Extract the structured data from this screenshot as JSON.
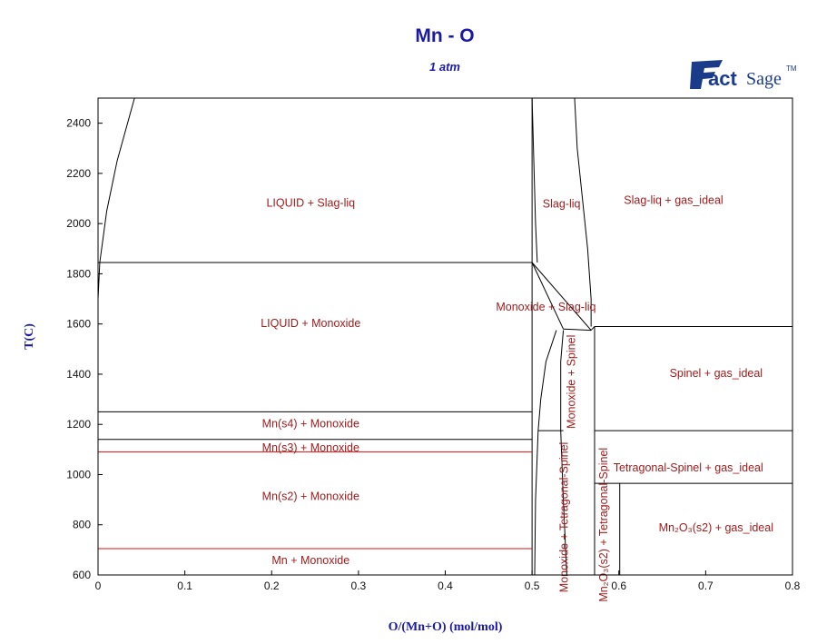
{
  "title": "Mn - O",
  "subtitle": "1 atm",
  "logo_text": "FactSage",
  "logo_tm": "TM",
  "colors": {
    "title": "#1a1aa6",
    "region_label": "#a01c1c",
    "boundary": "#000000",
    "red_line": "#d01010"
  },
  "chart_data": {
    "type": "phase-diagram",
    "xlabel": "O/(Mn+O) (mol/mol)",
    "ylabel": "T(C)",
    "xlim": [
      0,
      0.8
    ],
    "ylim": [
      600,
      2500
    ],
    "x_ticks": [
      "0",
      "0.1",
      "0.2",
      "0.3",
      "0.4",
      "0.5",
      "0.6",
      "0.7",
      "0.8"
    ],
    "y_ticks": [
      "600",
      "800",
      "1000",
      "1200",
      "1400",
      "1600",
      "1800",
      "2000",
      "2200",
      "2400"
    ],
    "grid": false,
    "region_labels": [
      {
        "text": "LIQUID + Slag-liq",
        "x": 0.245,
        "y": 2080,
        "rotate": 0
      },
      {
        "text": "Slag-liq",
        "x": 0.534,
        "y": 2075,
        "rotate": 0
      },
      {
        "text": "Slag-liq + gas_ideal",
        "x": 0.663,
        "y": 2090,
        "rotate": 0
      },
      {
        "text": "LIQUID + Monoxide",
        "x": 0.245,
        "y": 1600,
        "rotate": 0
      },
      {
        "text": "Monoxide + Slag-liq",
        "x": 0.516,
        "y": 1665,
        "rotate": 0
      },
      {
        "text": "Spinel + gas_ideal",
        "x": 0.712,
        "y": 1400,
        "rotate": 0
      },
      {
        "text": "Monoxide + Spinel",
        "x": 0.546,
        "y": 1370,
        "rotate": -90
      },
      {
        "text": "Mn(s4) + Monoxide",
        "x": 0.245,
        "y": 1200,
        "rotate": 0
      },
      {
        "text": "Mn(s3) + Monoxide",
        "x": 0.245,
        "y": 1105,
        "rotate": 0
      },
      {
        "text": "Tetragonal-Spinel + gas_ideal",
        "x": 0.68,
        "y": 1025,
        "rotate": 0
      },
      {
        "text": "Mn(s2) + Monoxide",
        "x": 0.245,
        "y": 910,
        "rotate": 0
      },
      {
        "text": "Monoxide + Tetragonal-Spinel",
        "x": 0.538,
        "y": 830,
        "rotate": -90
      },
      {
        "text": "Mn + Monoxide",
        "x": 0.245,
        "y": 655,
        "rotate": 0
      },
      {
        "text": "Mn₂O₃(s2) + gas_ideal",
        "x": 0.712,
        "y": 785,
        "rotate": 0
      },
      {
        "text": "Mn₂O₃(s2) + Tetragonal-Spinel",
        "x": 0.583,
        "y": 800,
        "rotate": -90
      }
    ],
    "black_lines": [
      [
        [
          0.0,
          1845
        ],
        [
          0.5,
          1845
        ]
      ],
      [
        [
          0.0,
          1250
        ],
        [
          0.5,
          1250
        ]
      ],
      [
        [
          0.0,
          1140
        ],
        [
          0.5,
          1140
        ]
      ],
      [
        [
          0.5,
          600
        ],
        [
          0.5,
          2500
        ]
      ],
      [
        [
          0.5,
          1845
        ],
        [
          0.568,
          1575
        ]
      ],
      [
        [
          0.5,
          1845
        ],
        [
          0.536,
          1580
        ]
      ],
      [
        [
          0.536,
          1580
        ],
        [
          0.568,
          1575
        ]
      ],
      [
        [
          0.568,
          1575
        ],
        [
          0.572,
          1590
        ]
      ],
      [
        [
          0.572,
          600
        ],
        [
          0.572,
          1590
        ]
      ],
      [
        [
          0.572,
          1590
        ],
        [
          0.8,
          1590
        ]
      ],
      [
        [
          0.572,
          1175
        ],
        [
          0.8,
          1175
        ]
      ],
      [
        [
          0.572,
          965
        ],
        [
          0.8,
          965
        ]
      ],
      [
        [
          0.601,
          600
        ],
        [
          0.601,
          965
        ]
      ],
      [
        [
          0.507,
          1175
        ],
        [
          0.536,
          1175
        ]
      ]
    ],
    "red_lines": [
      [
        [
          0.0,
          1090
        ],
        [
          0.5,
          1090
        ]
      ],
      [
        [
          0.0,
          705
        ],
        [
          0.5,
          705
        ]
      ]
    ],
    "curves": [
      {
        "name": "liquidus-left",
        "points": [
          [
            0.0,
            1700
          ],
          [
            0.002,
            1845
          ],
          [
            0.01,
            2050
          ],
          [
            0.022,
            2250
          ],
          [
            0.042,
            2500
          ]
        ]
      },
      {
        "name": "slag-liq-left",
        "points": [
          [
            0.5,
            2500
          ],
          [
            0.502,
            2250
          ],
          [
            0.504,
            2000
          ],
          [
            0.506,
            1845
          ]
        ]
      },
      {
        "name": "slag-liq-right",
        "points": [
          [
            0.549,
            2500
          ],
          [
            0.552,
            2300
          ],
          [
            0.558,
            2100
          ],
          [
            0.564,
            1900
          ],
          [
            0.568,
            1700
          ],
          [
            0.568,
            1590
          ]
        ]
      },
      {
        "name": "monoxide-spinel",
        "points": [
          [
            0.528,
            1575
          ],
          [
            0.516,
            1450
          ],
          [
            0.51,
            1300
          ],
          [
            0.507,
            1175
          ],
          [
            0.504,
            900
          ],
          [
            0.503,
            600
          ]
        ]
      },
      {
        "name": "spinel-left",
        "points": [
          [
            0.536,
            1575
          ],
          [
            0.533,
            1450
          ],
          [
            0.533,
            1300
          ],
          [
            0.533,
            1175
          ],
          [
            0.536,
            900
          ],
          [
            0.54,
            600
          ]
        ]
      }
    ]
  }
}
